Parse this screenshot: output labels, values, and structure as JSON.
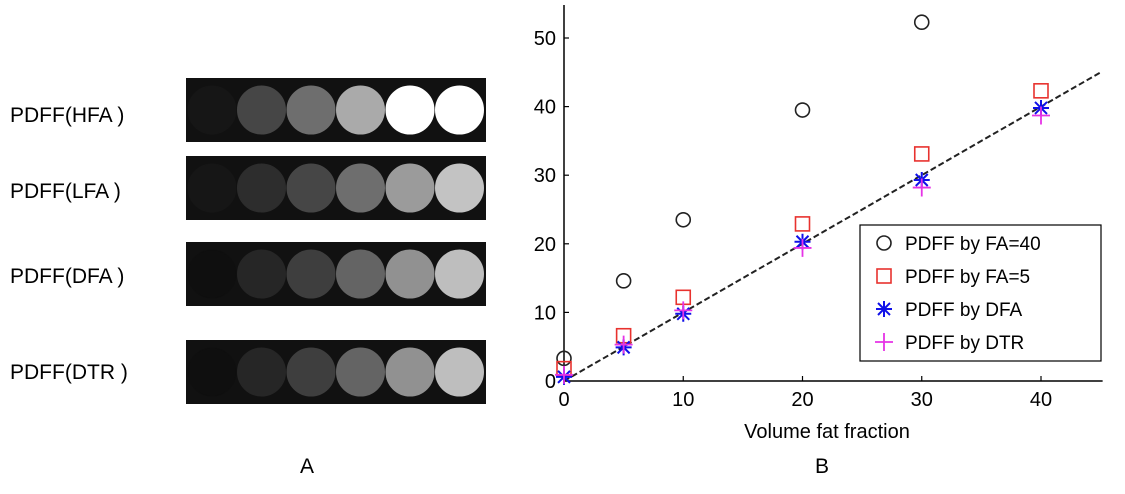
{
  "panel_a": {
    "letter": "A",
    "rows": [
      {
        "label": "PDFF(HFA )",
        "grays": [
          22,
          70,
          110,
          170,
          255,
          255
        ]
      },
      {
        "label": "PDFF(LFA )",
        "grays": [
          22,
          45,
          70,
          110,
          155,
          195
        ]
      },
      {
        "label": "PDFF(DFA )",
        "grays": [
          15,
          38,
          62,
          100,
          145,
          190
        ]
      },
      {
        "label": "PDFF(DTR )",
        "grays": [
          15,
          38,
          62,
          100,
          145,
          190
        ]
      }
    ]
  },
  "panel_b": {
    "letter": "B"
  },
  "chart_data": {
    "type": "scatter",
    "xlabel": "Volume fat fraction",
    "ylabel": "",
    "xlim": [
      0,
      45
    ],
    "ylim": [
      0,
      55
    ],
    "xticks": [
      0,
      10,
      20,
      30,
      40
    ],
    "yticks": [
      0,
      10,
      20,
      30,
      40,
      50
    ],
    "grid": false,
    "legend_position": "lower-right",
    "identity_line": {
      "x": [
        0,
        45
      ],
      "y": [
        0,
        45
      ],
      "color": "#222222",
      "style": "dashed"
    },
    "series": [
      {
        "name": "PDFF by FA=40",
        "marker": "circle",
        "color": "#222222",
        "x": [
          0,
          5,
          10,
          20,
          30
        ],
        "y": [
          3.3,
          14.6,
          23.5,
          39.5,
          52.3
        ]
      },
      {
        "name": "PDFF by FA=5",
        "marker": "square",
        "color": "#e8322e",
        "x": [
          0,
          5,
          10,
          20,
          30,
          40
        ],
        "y": [
          1.8,
          6.6,
          12.2,
          22.9,
          33.1,
          42.3
        ]
      },
      {
        "name": "PDFF by DFA",
        "marker": "asterisk",
        "color": "#1010e8",
        "x": [
          0,
          5,
          10,
          20,
          30,
          40
        ],
        "y": [
          0.6,
          4.9,
          9.8,
          20.3,
          29.3,
          39.8
        ]
      },
      {
        "name": "PDFF by DTR",
        "marker": "plus",
        "color": "#e633e6",
        "x": [
          0,
          5,
          10,
          20,
          30,
          40
        ],
        "y": [
          0.9,
          5.3,
          10.3,
          19.4,
          28.2,
          38.7
        ]
      }
    ]
  }
}
